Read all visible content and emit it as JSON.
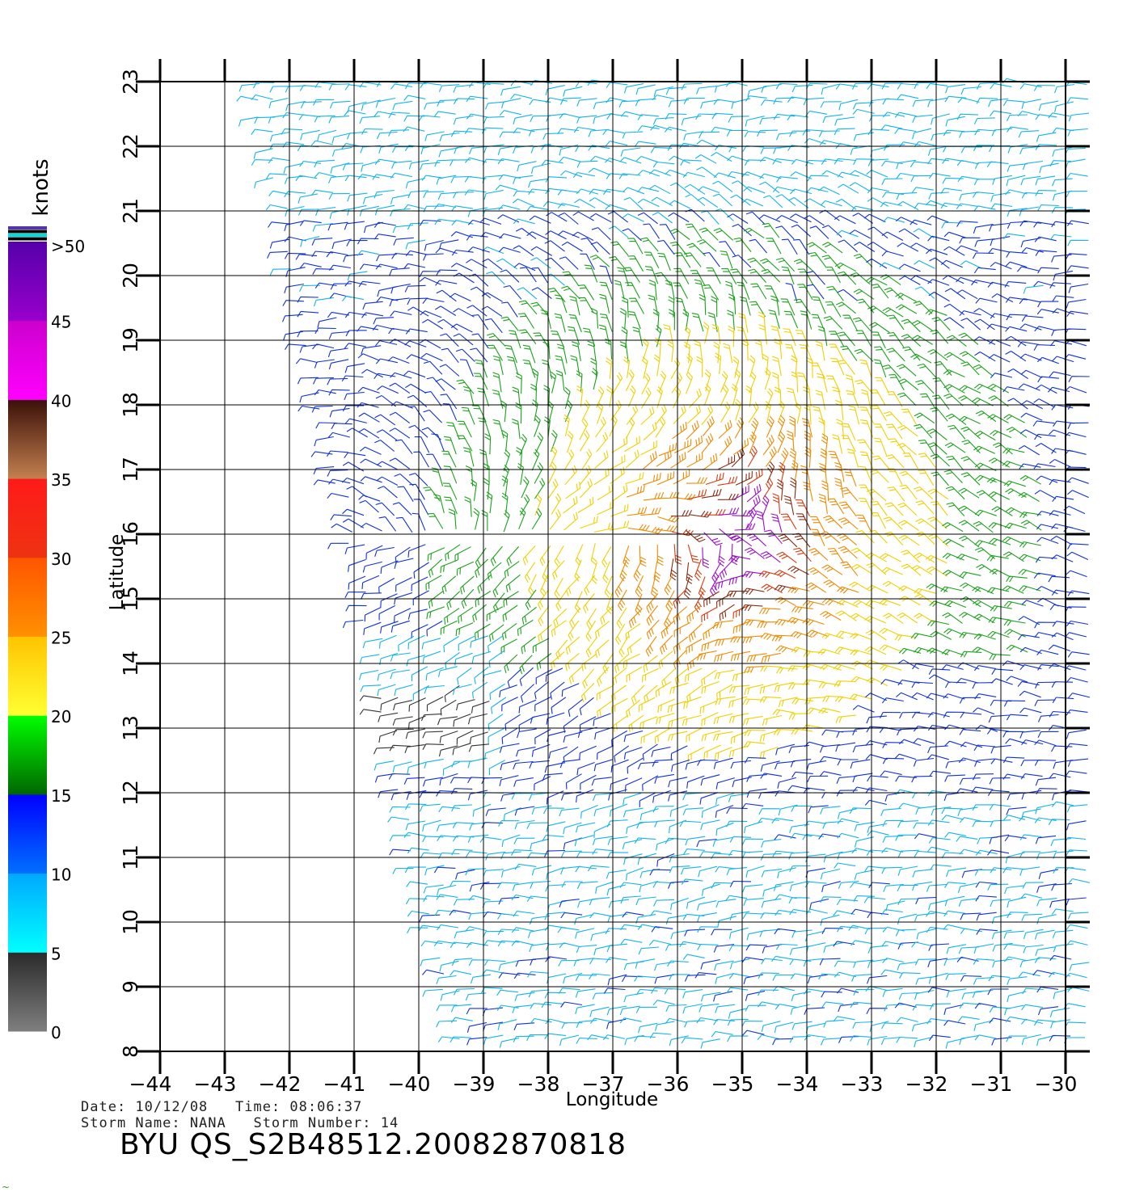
{
  "map": {
    "x_label": "Longitude",
    "y_label": "Latitude",
    "lon_ticks": [
      -44,
      -43,
      -42,
      -41,
      -40,
      -39,
      -38,
      -37,
      -36,
      -35,
      -34,
      -33,
      -32,
      -31,
      -30
    ],
    "lat_ticks": [
      8,
      9,
      10,
      11,
      12,
      13,
      14,
      15,
      16,
      17,
      18,
      19,
      20,
      21,
      22,
      23
    ],
    "lon_range": [
      -44,
      -29.6
    ],
    "lat_range": [
      8,
      23
    ],
    "storm_center": {
      "lon": -35,
      "lat": 15.9
    },
    "swath": "right-leaning diagonal satellite swath, west edge from about -42.5 at lat 23 to -39.5 at lat 8",
    "grid": true
  },
  "legend": {
    "unit": "knots",
    "labels": [
      "0",
      "5",
      "10",
      "15",
      "20",
      "25",
      "30",
      "35",
      "40",
      "45",
      ">50"
    ],
    "bands": [
      {
        "from": 0,
        "to": 5,
        "colors": [
          "#7f7f7f",
          "#2a2a2a"
        ]
      },
      {
        "from": 5,
        "to": 10,
        "colors": [
          "#00ffff",
          "#00a8ff"
        ]
      },
      {
        "from": 10,
        "to": 15,
        "colors": [
          "#0070ff",
          "#0000ff"
        ]
      },
      {
        "from": 15,
        "to": 20,
        "colors": [
          "#006600",
          "#00ff00"
        ]
      },
      {
        "from": 20,
        "to": 25,
        "colors": [
          "#ffff33",
          "#ffc400"
        ]
      },
      {
        "from": 25,
        "to": 30,
        "colors": [
          "#ff9100",
          "#ff5500"
        ]
      },
      {
        "from": 30,
        "to": 35,
        "colors": [
          "#ee3311",
          "#ff1a1a"
        ]
      },
      {
        "from": 35,
        "to": 40,
        "colors": [
          "#c48050",
          "#3a1008"
        ]
      },
      {
        "from": 40,
        "to": 45,
        "colors": [
          "#ff00ff",
          "#cc00cc"
        ]
      },
      {
        "from": 45,
        "to": 50,
        "colors": [
          "#9900cc",
          "#5500aa"
        ]
      }
    ],
    "top_stripes": [
      "#5533aa",
      "#000000",
      "#00dddd",
      "#000000"
    ]
  },
  "info": {
    "date_line": "Date: 10/12/08   Time: 08:06:37",
    "storm_line": "Storm Name: NANA   Storm Number: 14",
    "title": "BYU QS_S2B48512.20082870818",
    "corner_mark": "~"
  },
  "colors": {
    "axis": "#000000",
    "grid": "#000000"
  }
}
